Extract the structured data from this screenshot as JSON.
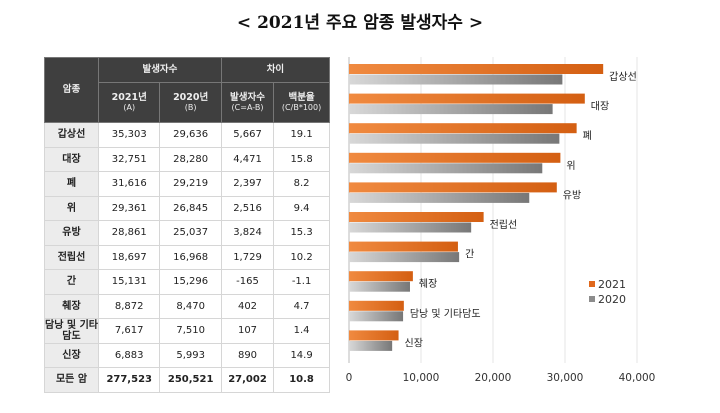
{
  "title": "< 2021년 주요 암종 발생자수 >",
  "table": {
    "headers": {
      "cancer": "암종",
      "group1": "발생자수",
      "group2": "차이",
      "col_2021": "2021년",
      "col_2021_sub": "(A)",
      "col_2020": "2020년",
      "col_2020_sub": "(B)",
      "col_diff": "발생자수",
      "col_diff_sub": "(C=A-B)",
      "col_pct": "백분율",
      "col_pct_sub": "(C/B*100)"
    },
    "rows": [
      [
        "갑상선",
        "35,303",
        "29,636",
        "5,667",
        "19.1"
      ],
      [
        "대장",
        "32,751",
        "28,280",
        "4,471",
        "15.8"
      ],
      [
        "폐",
        "31,616",
        "29,219",
        "2,397",
        "8.2"
      ],
      [
        "위",
        "29,361",
        "26,845",
        "2,516",
        "9.4"
      ],
      [
        "유방",
        "28,861",
        "25,037",
        "3,824",
        "15.3"
      ],
      [
        "전립선",
        "18,697",
        "16,968",
        "1,729",
        "10.2"
      ],
      [
        "간",
        "15,131",
        "15,296",
        "-165",
        "-1.1"
      ],
      [
        "췌장",
        "8,872",
        "8,470",
        "402",
        "4.7"
      ],
      [
        "담낭 및 기타담도",
        "7,617",
        "7,510",
        "107",
        "1.4"
      ],
      [
        "신장",
        "6,883",
        "5,993",
        "890",
        "14.9"
      ],
      [
        "모든 암",
        "277,523",
        "250,521",
        "27,002",
        "10.8"
      ]
    ]
  },
  "chart_data": {
    "type": "bar",
    "orientation": "horizontal",
    "categories": [
      "갑상선",
      "대장",
      "폐",
      "위",
      "유방",
      "전립선",
      "간",
      "췌장",
      "담낭 및 기타담도",
      "신장"
    ],
    "series": [
      {
        "name": "2021",
        "values": [
          35303,
          32751,
          31616,
          29361,
          28861,
          18697,
          15131,
          8872,
          7617,
          6883
        ],
        "color": "#e0681c"
      },
      {
        "name": "2020",
        "values": [
          29636,
          28280,
          29219,
          26845,
          25037,
          16968,
          15296,
          8470,
          7510,
          5993
        ],
        "color": "#8c8c8c"
      }
    ],
    "xlim": [
      0,
      40000
    ],
    "xticks": [
      "0",
      "10,000",
      "20,000",
      "30,000",
      "40,000"
    ],
    "grid": true,
    "legend": "right"
  }
}
